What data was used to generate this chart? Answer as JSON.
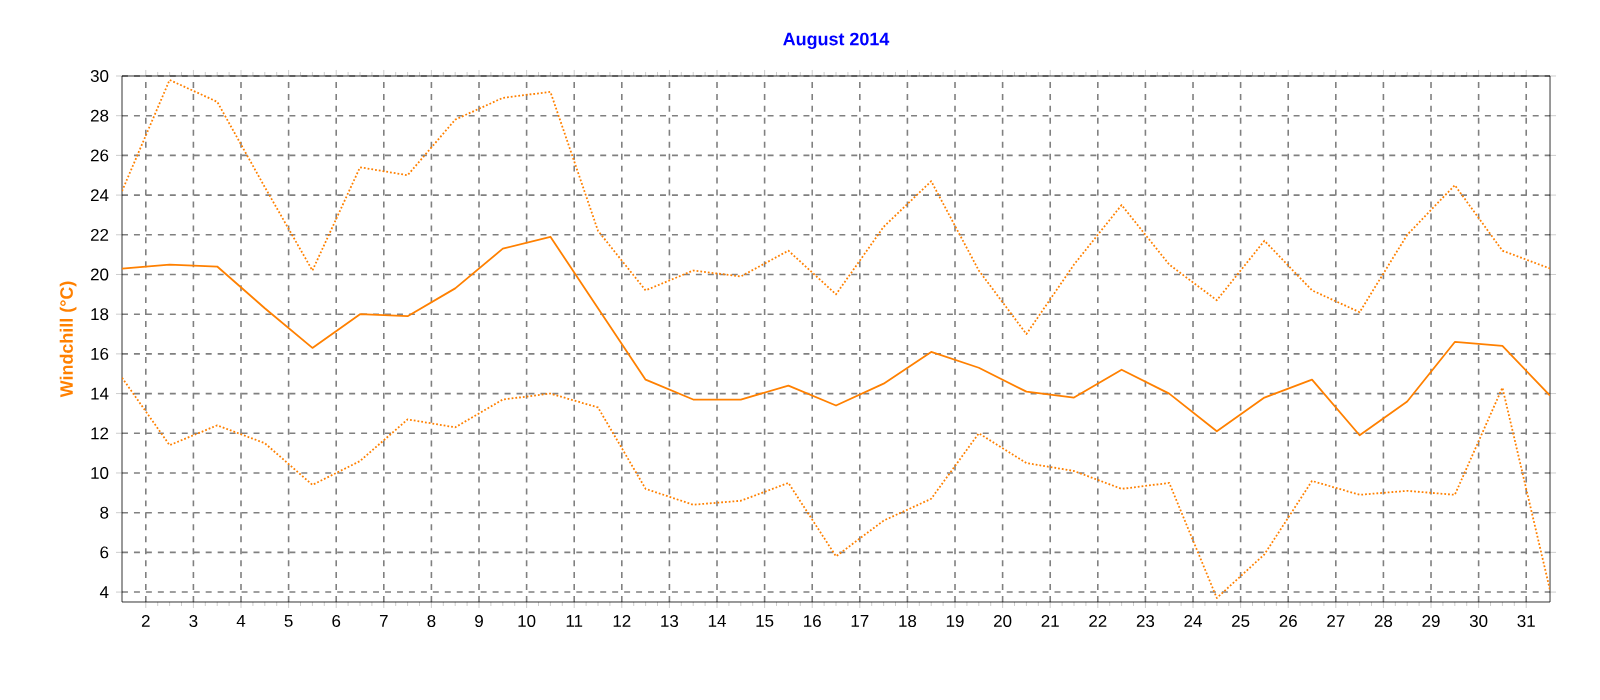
{
  "chart_data": {
    "type": "line",
    "title": "August 2014",
    "ylabel": "Windchill (°C)",
    "x": [
      1.5,
      2.5,
      3.5,
      4.5,
      5.5,
      6.5,
      7.5,
      8.5,
      9.5,
      10.5,
      11.5,
      12.5,
      13.5,
      14.5,
      15.5,
      16.5,
      17.5,
      18.5,
      19.5,
      20.5,
      21.5,
      22.5,
      23.5,
      24.5,
      25.5,
      26.5,
      27.5,
      28.5,
      29.5,
      30.5,
      31.5
    ],
    "series": [
      {
        "color": "#ff8000",
        "line_style": "dotted",
        "values": [
          24.2,
          29.8,
          28.7,
          24.4,
          20.2,
          25.4,
          25.0,
          27.8,
          28.9,
          29.2,
          22.2,
          19.2,
          20.2,
          19.9,
          21.2,
          19.0,
          22.4,
          24.7,
          20.2,
          17.0,
          20.5,
          23.5,
          20.5,
          18.7,
          21.7,
          19.2,
          18.1,
          22.0,
          24.5,
          21.2,
          20.3
        ]
      },
      {
        "color": "#ff8000",
        "line_style": "solid",
        "values": [
          20.3,
          20.5,
          20.4,
          18.3,
          16.3,
          18.0,
          17.9,
          19.3,
          21.3,
          21.9,
          18.3,
          14.7,
          13.7,
          13.7,
          14.4,
          13.4,
          14.5,
          16.1,
          15.3,
          14.1,
          13.8,
          15.2,
          14.0,
          12.1,
          13.8,
          14.7,
          11.9,
          13.6,
          16.6,
          16.4,
          13.9
        ]
      },
      {
        "color": "#ff8000",
        "line_style": "dotted",
        "values": [
          14.8,
          11.4,
          12.4,
          11.5,
          9.4,
          10.6,
          12.7,
          12.3,
          13.7,
          14.0,
          13.3,
          9.2,
          8.4,
          8.6,
          9.5,
          5.8,
          7.6,
          8.7,
          12.0,
          10.5,
          10.1,
          9.2,
          9.5,
          3.7,
          5.9,
          9.6,
          8.9,
          9.1,
          8.9,
          14.3,
          4.1
        ]
      }
    ],
    "xlim": [
      1.5,
      31.5
    ],
    "xticks": [
      2,
      3,
      4,
      5,
      6,
      7,
      8,
      9,
      10,
      11,
      12,
      13,
      14,
      15,
      16,
      17,
      18,
      19,
      20,
      21,
      22,
      23,
      24,
      25,
      26,
      27,
      28,
      29,
      30,
      31
    ],
    "ylim": [
      3.5,
      30
    ],
    "yticks": [
      4,
      6,
      8,
      10,
      12,
      14,
      16,
      18,
      20,
      22,
      24,
      26,
      28,
      30
    ],
    "grid": true
  }
}
